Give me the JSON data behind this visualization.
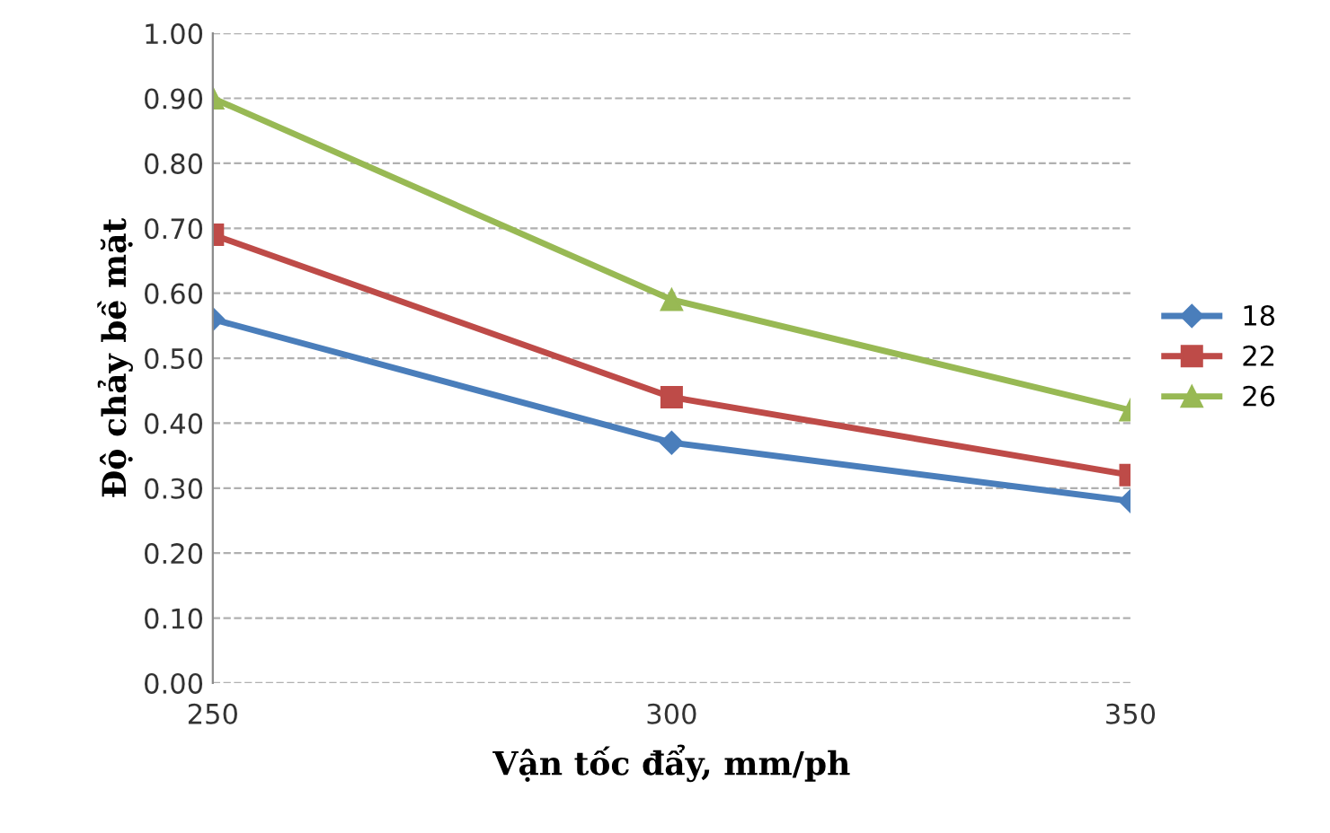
{
  "chart_data": {
    "type": "line",
    "xlabel": "Vận tốc đẩy, mm/ph",
    "ylabel": "Độ chảy bề mặt",
    "x": [
      250,
      300,
      350
    ],
    "series": [
      {
        "name": "18",
        "color": "#4a7ebb",
        "marker": "diamond",
        "values": [
          0.56,
          0.37,
          0.28
        ]
      },
      {
        "name": "22",
        "color": "#be4b48",
        "marker": "square",
        "values": [
          0.69,
          0.44,
          0.32
        ]
      },
      {
        "name": "26",
        "color": "#98b954",
        "marker": "triangle",
        "values": [
          0.9,
          0.59,
          0.42
        ]
      }
    ],
    "xlim": [
      250,
      350
    ],
    "xticks": [
      250,
      300,
      350
    ],
    "ylim": [
      0,
      1
    ],
    "yticks": [
      {
        "value": 0,
        "label": "0.00"
      },
      {
        "value": 0.1,
        "label": "0.10"
      },
      {
        "value": 0.2,
        "label": "0.20"
      },
      {
        "value": 0.3,
        "label": "0.30"
      },
      {
        "value": 0.4,
        "label": "0.40"
      },
      {
        "value": 0.5,
        "label": "0.50"
      },
      {
        "value": 0.6,
        "label": "0.60"
      },
      {
        "value": 0.7,
        "label": "0.70"
      },
      {
        "value": 0.8,
        "label": "0.80"
      },
      {
        "value": 0.9,
        "label": "0.90"
      },
      {
        "value": 1,
        "label": "1.00"
      }
    ],
    "grid": "y",
    "legend": "right",
    "line_style": "solid"
  }
}
